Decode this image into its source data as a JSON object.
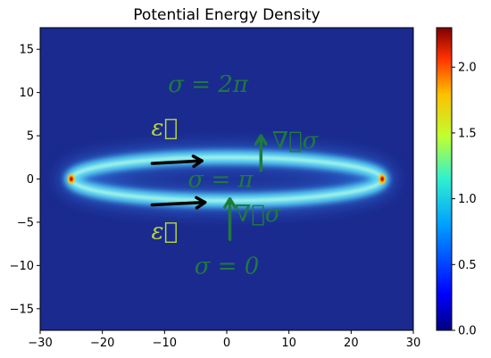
{
  "chart_data": {
    "type": "heatmap",
    "title": "Potential Energy Density",
    "xlabel": "",
    "ylabel": "",
    "xlim": [
      -30,
      30
    ],
    "ylim": [
      -17.5,
      17.5
    ],
    "x_ticks": [
      -30,
      -20,
      -10,
      0,
      10,
      20,
      30
    ],
    "y_ticks": [
      -15,
      -10,
      -5,
      0,
      5,
      10,
      15
    ],
    "colormap": "jet",
    "colorbar": {
      "min": 0.0,
      "max": 2.3,
      "ticks": [
        0.0,
        0.5,
        1.0,
        1.5,
        2.0
      ]
    },
    "field": {
      "shape": "elliptical-ring",
      "ring_center": [
        0,
        0
      ],
      "ring_half_length_x": 25,
      "ring_half_height_y": 2.5,
      "ring_level": 0.85,
      "background_level": 0.05,
      "peak_points": [
        [
          -25,
          0,
          2.3
        ],
        [
          25,
          0,
          2.3
        ]
      ]
    },
    "annotations": [
      {
        "text": "σ = 2π",
        "x": -3,
        "y": 11,
        "color": "#1f7a3e"
      },
      {
        "text": "σ = π",
        "x": -1,
        "y": 0,
        "color": "#1f7a3e"
      },
      {
        "text": "σ = 0",
        "x": 0,
        "y": -10,
        "color": "#1f7a3e"
      },
      {
        "text": "ε⃗",
        "x": -10,
        "y": 6,
        "color": "#b8d93a"
      },
      {
        "text": "ε⃗",
        "x": -10,
        "y": -6,
        "color": "#b8d93a"
      },
      {
        "text": "∇⃗σ",
        "x": 11,
        "y": 4.5,
        "color": "#1f7a3e"
      },
      {
        "text": "∇⃗σ",
        "x": 5,
        "y": -4,
        "color": "#1f7a3e"
      }
    ],
    "arrows": [
      {
        "from": [
          -12,
          1.8
        ],
        "to": [
          -4,
          2.1
        ],
        "color": "#000000"
      },
      {
        "from": [
          -12,
          -3.0
        ],
        "to": [
          -3.5,
          -2.7
        ],
        "color": "#000000"
      },
      {
        "from": [
          5.5,
          1.0
        ],
        "to": [
          5.5,
          5.0
        ],
        "color": "#1f7a3e"
      },
      {
        "from": [
          0.5,
          -7.0
        ],
        "to": [
          0.5,
          -2.3
        ],
        "color": "#1f7a3e"
      }
    ]
  }
}
